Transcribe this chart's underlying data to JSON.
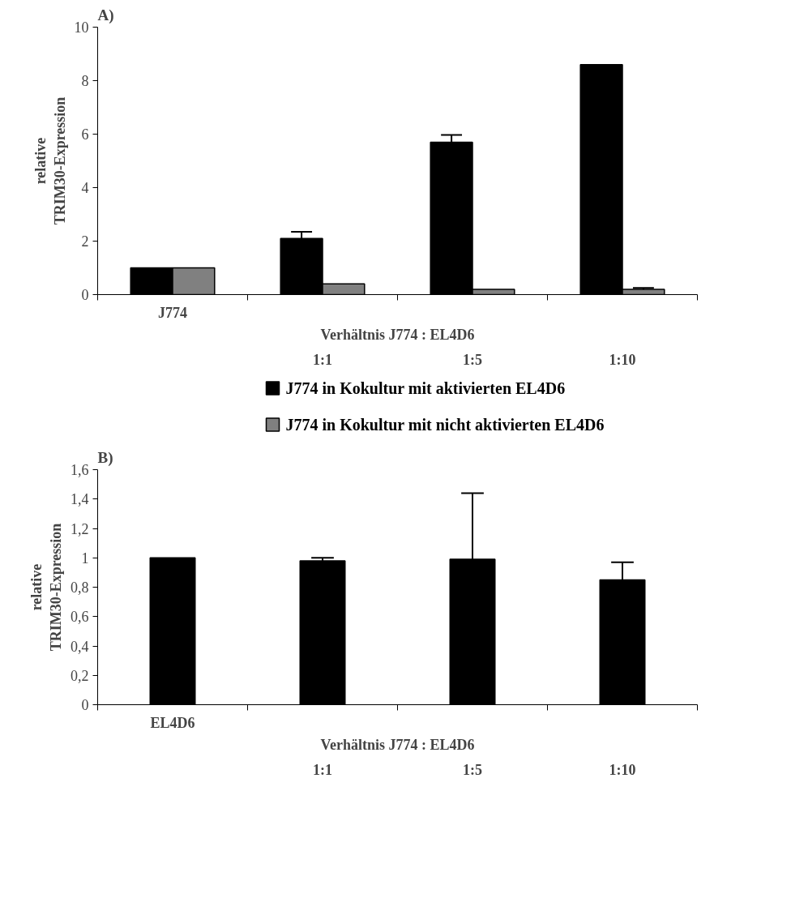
{
  "chart_data": [
    {
      "type": "bar",
      "title": "A)",
      "ylabel": "relative\nTRIM30-Expression",
      "xlabel": "Verhältnis J774 : EL4D6",
      "categories": [
        "J774",
        "1:1",
        "1:5",
        "1:10"
      ],
      "series": [
        {
          "name": "J774 in Kokultur mit aktivierten EL4D6",
          "color": "#000000",
          "values": [
            1.0,
            2.1,
            5.7,
            8.6
          ],
          "errors": [
            null,
            [
              2.1,
              2.35
            ],
            [
              5.7,
              5.97
            ],
            null
          ]
        },
        {
          "name": "J774 in Kokultur mit  nicht aktivierten EL4D6",
          "color": "#808080",
          "values": [
            1.0,
            0.4,
            0.2,
            0.2
          ],
          "errors": [
            null,
            null,
            null,
            [
              0.2,
              0.25
            ]
          ]
        }
      ],
      "ylim": [
        0,
        10
      ],
      "yticks": [
        0,
        2,
        4,
        6,
        8,
        10
      ],
      "grid": false,
      "legend": "bottom"
    },
    {
      "type": "bar",
      "title": "B)",
      "ylabel": "relative\nTRIM30-Expression",
      "xlabel": "Verhältnis J774 : EL4D6",
      "categories": [
        "EL4D6",
        "1:1",
        "1:5",
        "1:10"
      ],
      "series": [
        {
          "color": "#000000",
          "values": [
            1.0,
            0.98,
            0.99,
            0.85
          ],
          "errors": [
            null,
            [
              0.98,
              1.0
            ],
            [
              0.99,
              1.44
            ],
            [
              0.85,
              0.97
            ]
          ]
        }
      ],
      "ylim": [
        0,
        1.6
      ],
      "yticks": [
        0,
        {
          "value": 0.2,
          "label": "0,2"
        },
        {
          "value": 0.4,
          "label": "0,4"
        },
        {
          "value": 0.6,
          "label": "0,6"
        },
        {
          "value": 0.8,
          "label": "0,8"
        },
        1,
        {
          "value": 1.2,
          "label": "1,2"
        },
        {
          "value": 1.4,
          "label": "1,4"
        },
        {
          "value": 1.6,
          "label": "1,6"
        }
      ],
      "grid": false,
      "legend": false
    }
  ]
}
